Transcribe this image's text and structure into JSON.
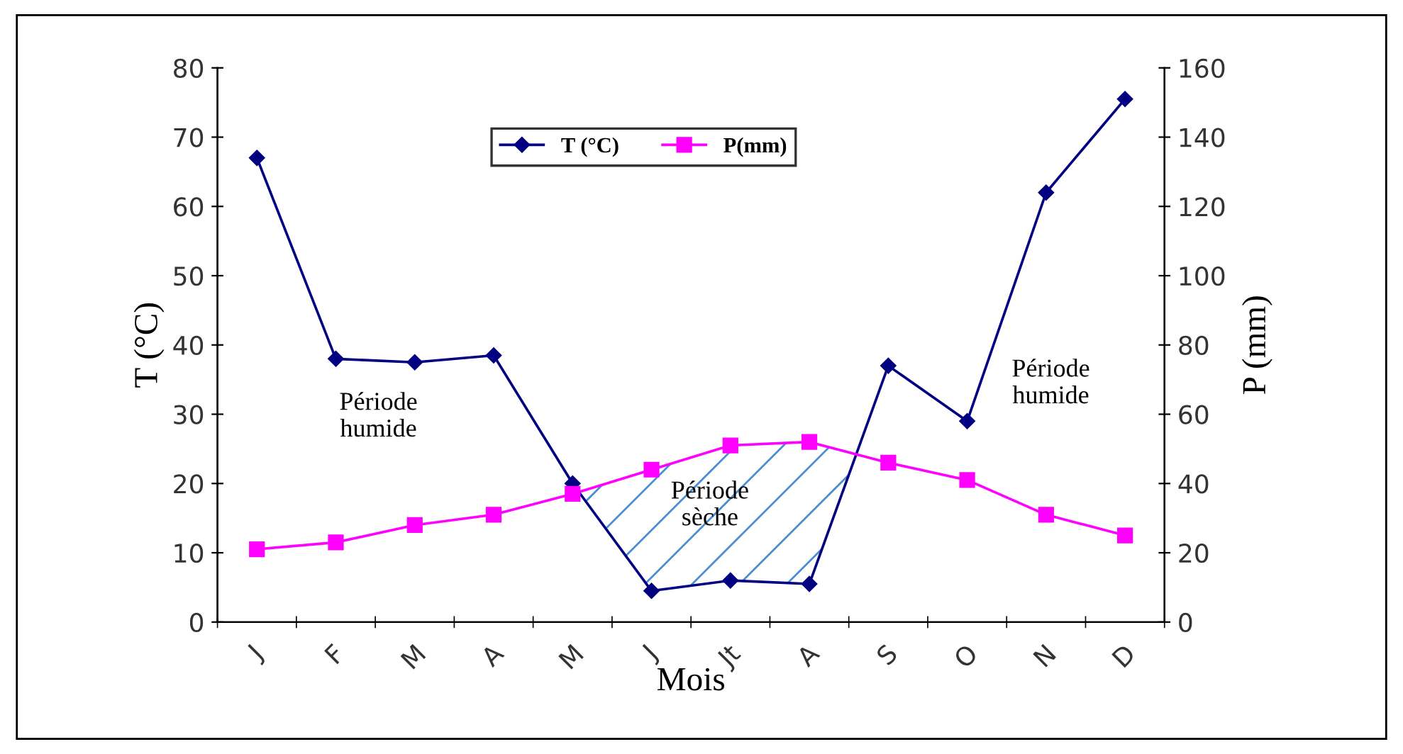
{
  "chart_data": {
    "type": "line",
    "xlabel": "Mois",
    "ylabel": "T (°C)",
    "y2label": "P (mm)",
    "categories": [
      "J",
      "F",
      "M",
      "A",
      "M",
      "J",
      "Jt",
      "A",
      "S",
      "O",
      "N",
      "D"
    ],
    "series": [
      {
        "name": "T (°C)",
        "color": "#000080",
        "marker": "diamond",
        "values": [
          67,
          38,
          37.5,
          38.5,
          20,
          4.5,
          6,
          5.5,
          37,
          29,
          62,
          75.5
        ]
      },
      {
        "name": "P(mm)",
        "color": "#ff00ff",
        "marker": "square",
        "axis": "y2",
        "values": [
          21,
          23,
          28,
          31,
          37,
          44,
          51,
          52,
          46,
          41,
          31,
          25
        ]
      }
    ],
    "ylim": [
      0,
      80
    ],
    "yticks": [
      0,
      10,
      20,
      30,
      40,
      50,
      60,
      70,
      80
    ],
    "y2lim": [
      0,
      160
    ],
    "y2ticks": [
      0,
      20,
      40,
      60,
      80,
      100,
      120,
      140,
      160
    ],
    "annotations": [
      "Période\nhumide",
      "Période\nsèche",
      "Période\nhumide"
    ],
    "legend": "top",
    "grid": false
  }
}
